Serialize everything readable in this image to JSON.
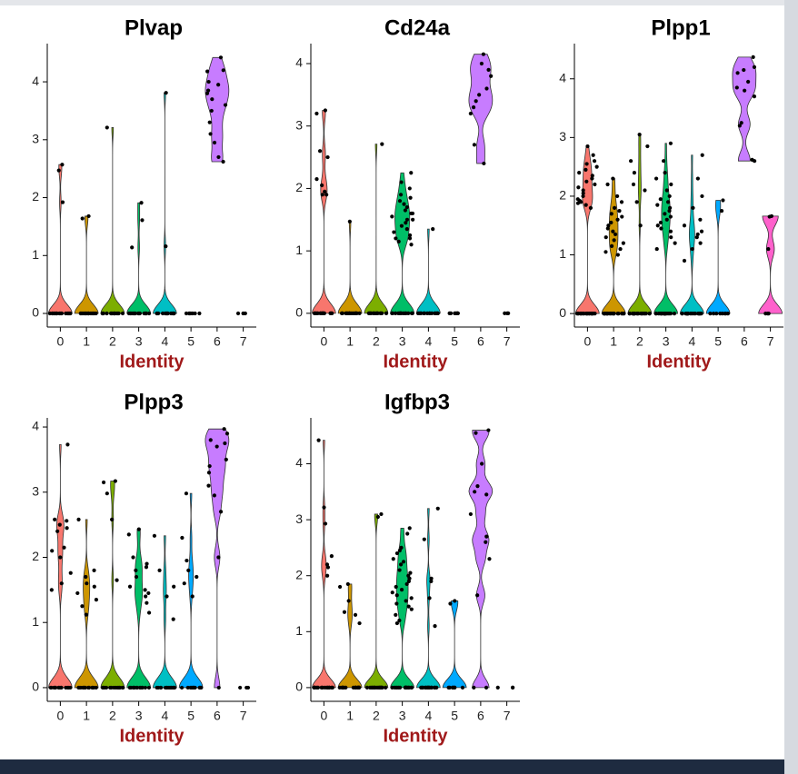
{
  "chart_data": [
    {
      "type": "violin",
      "title": "Plvap",
      "x_label": "Identity",
      "categories": [
        "0",
        "1",
        "2",
        "3",
        "4",
        "5",
        "6",
        "7"
      ],
      "colors": [
        "#F8766D",
        "#CD9600",
        "#7CAE00",
        "#00BE67",
        "#00BFC4",
        "#00A9FF",
        "#C77CFF",
        "#FF61CC"
      ],
      "ylim": [
        -0.235,
        4.66
      ],
      "yticks": [
        0,
        1,
        2,
        3,
        4
      ],
      "values": [
        [
          0,
          0,
          0,
          0,
          0,
          0,
          0,
          0,
          0,
          0,
          0,
          0,
          0,
          0,
          0,
          2.57,
          2.47,
          1.92
        ],
        [
          0,
          0,
          0,
          0,
          0,
          0,
          0,
          0,
          0,
          0,
          0,
          0,
          0,
          0,
          0,
          1.64,
          1.68
        ],
        [
          0,
          0,
          0,
          0,
          0,
          0,
          0,
          0,
          0,
          0,
          0,
          0,
          0,
          0,
          0,
          3.21
        ],
        [
          0,
          0,
          0,
          0,
          0,
          0,
          0,
          0,
          0,
          0,
          0,
          0,
          0,
          0,
          0,
          1.14,
          1.61,
          1.91
        ],
        [
          0,
          0,
          0,
          0,
          0,
          0,
          0,
          0,
          0,
          0,
          0,
          0,
          0,
          0,
          0,
          3.81,
          1.16
        ],
        [
          0,
          0,
          0,
          0,
          0,
          0,
          0
        ],
        [
          4.42,
          4.2,
          4.18,
          4.0,
          3.95,
          3.85,
          3.8,
          3.7,
          3.6,
          3.5,
          3.3,
          3.1,
          2.95,
          2.7,
          2.62
        ],
        [
          0,
          0,
          0
        ]
      ]
    },
    {
      "type": "violin",
      "title": "Cd24a",
      "x_label": "Identity",
      "categories": [
        "0",
        "1",
        "2",
        "3",
        "4",
        "5",
        "6",
        "7"
      ],
      "colors": [
        "#F8766D",
        "#CD9600",
        "#7CAE00",
        "#00BE67",
        "#00BFC4",
        "#00A9FF",
        "#C77CFF",
        "#FF61CC"
      ],
      "ylim": [
        -0.22,
        4.32
      ],
      "yticks": [
        0,
        1,
        2,
        3,
        4
      ],
      "values": [
        [
          0,
          0,
          0,
          0,
          0,
          0,
          0,
          0,
          0,
          0,
          0,
          0,
          0,
          0,
          0,
          3.25,
          3.2,
          2.6,
          2.5,
          2.15,
          2.05,
          1.95,
          1.9,
          1.9
        ],
        [
          0,
          0,
          0,
          0,
          0,
          0,
          0,
          0,
          0,
          0,
          0,
          0,
          0,
          0,
          0,
          1.47
        ],
        [
          0,
          0,
          0,
          0,
          0,
          0,
          0,
          0,
          0,
          0,
          0,
          0,
          0,
          0,
          0,
          2.71
        ],
        [
          0,
          0,
          0,
          0,
          0,
          0,
          0,
          0,
          0,
          0,
          0,
          0,
          0,
          0,
          0,
          2.25,
          2.1,
          2.0,
          1.9,
          1.85,
          1.8,
          1.75,
          1.7,
          1.65,
          1.6,
          1.6,
          1.55,
          1.5,
          1.5,
          1.45,
          1.4,
          1.35,
          1.3,
          1.25,
          1.2,
          1.2,
          1.15,
          1.1
        ],
        [
          0,
          0,
          0,
          0,
          0,
          0,
          0,
          0,
          0,
          0,
          0,
          0,
          0,
          0,
          0,
          1.35
        ],
        [
          0,
          0,
          0,
          0,
          0,
          0,
          0
        ],
        [
          4.15,
          4.0,
          3.9,
          3.8,
          3.6,
          3.5,
          3.4,
          3.3,
          3.2,
          2.7,
          2.4
        ],
        [
          0,
          0,
          0
        ]
      ]
    },
    {
      "type": "violin",
      "title": "Plpp1",
      "x_label": "Identity",
      "categories": [
        "0",
        "1",
        "2",
        "3",
        "4",
        "5",
        "6",
        "7"
      ],
      "colors": [
        "#F8766D",
        "#CD9600",
        "#7CAE00",
        "#00BE67",
        "#00BFC4",
        "#00A9FF",
        "#C77CFF",
        "#FF61CC"
      ],
      "ylim": [
        -0.23,
        4.6
      ],
      "yticks": [
        0,
        1,
        2,
        3,
        4
      ],
      "values": [
        [
          0,
          0,
          0,
          0,
          0,
          0,
          0,
          0,
          0,
          0,
          0,
          0,
          0,
          0,
          0,
          0,
          0,
          0,
          0,
          0,
          2.85,
          2.7,
          2.6,
          2.55,
          2.5,
          2.45,
          2.4,
          2.35,
          2.3,
          2.25,
          2.2,
          2.15,
          2.1,
          2.05,
          2.0,
          1.95,
          1.92,
          1.9,
          1.88,
          1.85,
          1.8
        ],
        [
          0,
          0,
          0,
          0,
          0,
          0,
          0,
          0,
          0,
          0,
          0,
          0,
          0,
          0,
          0,
          0,
          0,
          0,
          0,
          0,
          2.3,
          2.2,
          2.0,
          1.9,
          1.8,
          1.75,
          1.7,
          1.65,
          1.6,
          1.55,
          1.5,
          1.45,
          1.4,
          1.35,
          1.3,
          1.25,
          1.2,
          1.15,
          1.1,
          1.05,
          1.0
        ],
        [
          0,
          0,
          0,
          0,
          0,
          0,
          0,
          0,
          0,
          0,
          0,
          0,
          0,
          0,
          0,
          0,
          0,
          0,
          0,
          0,
          3.05,
          2.85,
          2.6,
          2.4,
          2.2,
          2.1,
          1.9,
          1.5
        ],
        [
          0,
          0,
          0,
          0,
          0,
          0,
          0,
          0,
          0,
          0,
          0,
          0,
          0,
          0,
          0,
          0,
          0,
          0,
          0,
          0,
          2.9,
          2.6,
          2.4,
          2.3,
          2.2,
          2.1,
          2.0,
          1.95,
          1.9,
          1.85,
          1.8,
          1.75,
          1.7,
          1.65,
          1.6,
          1.55,
          1.5,
          1.45,
          1.4,
          1.3,
          1.2,
          1.1
        ],
        [
          0,
          0,
          0,
          0,
          0,
          0,
          0,
          0,
          0,
          0,
          0,
          0,
          0,
          0,
          0,
          0,
          0,
          0,
          0,
          0,
          2.7,
          2.3,
          2.0,
          1.8,
          1.6,
          1.5,
          1.4,
          1.35,
          1.3,
          1.2,
          1.1,
          0.9
        ],
        [
          0,
          0,
          0,
          0,
          0,
          0,
          0,
          0,
          1.93,
          1.75
        ],
        [
          4.37,
          4.2,
          4.15,
          4.1,
          3.95,
          3.85,
          3.8,
          3.7,
          3.25,
          3.2,
          2.62,
          2.6
        ],
        [
          1.66,
          1.65,
          1.1,
          0,
          0,
          0
        ]
      ]
    },
    {
      "type": "violin",
      "title": "Plpp3",
      "x_label": "Identity",
      "categories": [
        "0",
        "1",
        "2",
        "3",
        "4",
        "5",
        "6",
        "7"
      ],
      "colors": [
        "#F8766D",
        "#CD9600",
        "#7CAE00",
        "#00BE67",
        "#00BFC4",
        "#00A9FF",
        "#C77CFF",
        "#FF61CC"
      ],
      "ylim": [
        -0.21,
        4.14
      ],
      "yticks": [
        0,
        1,
        2,
        3,
        4
      ],
      "values": [
        [
          0,
          0,
          0,
          0,
          0,
          0,
          0,
          0,
          0,
          0,
          0,
          0,
          0,
          0,
          0,
          3.73,
          2.58,
          2.56,
          2.5,
          2.45,
          2.4,
          2.15,
          2.1,
          2.0,
          1.76,
          1.6,
          1.5
        ],
        [
          0,
          0,
          0,
          0,
          0,
          0,
          0,
          0,
          0,
          0,
          0,
          0,
          0,
          0,
          0,
          2.58,
          1.8,
          1.7,
          1.6,
          1.55,
          1.45,
          1.35,
          1.25,
          1.12
        ],
        [
          0,
          0,
          0,
          0,
          0,
          0,
          0,
          0,
          0,
          0,
          0,
          0,
          0,
          0,
          0,
          3.17,
          3.15,
          2.98,
          2.58,
          1.65
        ],
        [
          0,
          0,
          0,
          0,
          0,
          0,
          0,
          0,
          0,
          0,
          0,
          0,
          0,
          0,
          0,
          2.43,
          2.35,
          2.0,
          1.9,
          1.85,
          1.8,
          1.7,
          1.55,
          1.5,
          1.45,
          1.4,
          1.3,
          1.15
        ],
        [
          0,
          0,
          0,
          0,
          0,
          0,
          0,
          0,
          0,
          0,
          0,
          0,
          0,
          0,
          0,
          2.33,
          1.8,
          1.55,
          1.4,
          1.05
        ],
        [
          0,
          0,
          0,
          0,
          0,
          0,
          0,
          0,
          0,
          0,
          0,
          0,
          0,
          0,
          0,
          2.98,
          2.3,
          1.95,
          1.8,
          1.7,
          1.6,
          1.4
        ],
        [
          3.97,
          3.9,
          3.8,
          3.75,
          3.7,
          3.5,
          3.4,
          3.3,
          3.1,
          2.95,
          2.7,
          2.0,
          0
        ],
        [
          0,
          0,
          0
        ]
      ]
    },
    {
      "type": "violin",
      "title": "Igfbp3",
      "x_label": "Identity",
      "categories": [
        "0",
        "1",
        "2",
        "3",
        "4",
        "5",
        "6",
        "7"
      ],
      "colors": [
        "#F8766D",
        "#CD9600",
        "#7CAE00",
        "#00BE67",
        "#00BFC4",
        "#00A9FF",
        "#C77CFF",
        "#FF61CC"
      ],
      "ylim": [
        -0.245,
        4.82
      ],
      "yticks": [
        0,
        1,
        2,
        3,
        4
      ],
      "values": [
        [
          0,
          0,
          0,
          0,
          0,
          0,
          0,
          0,
          0,
          0,
          0,
          0,
          0,
          0,
          0,
          4.42,
          3.22,
          2.93,
          2.35,
          2.2,
          2.15,
          2.0
        ],
        [
          0,
          0,
          0,
          0,
          0,
          0,
          0,
          0,
          0,
          0,
          0,
          0,
          0,
          0,
          0,
          1.85,
          1.8,
          1.55,
          1.35,
          1.3,
          1.15
        ],
        [
          0,
          0,
          0,
          0,
          0,
          0,
          0,
          0,
          0,
          0,
          0,
          0,
          0,
          0,
          0,
          3.1,
          3.05
        ],
        [
          0,
          0,
          0,
          0,
          0,
          0,
          0,
          0,
          0,
          0,
          0,
          0,
          0,
          0,
          0,
          2.85,
          2.75,
          2.5,
          2.45,
          2.4,
          2.3,
          2.25,
          2.2,
          2.1,
          2.05,
          2.0,
          1.95,
          1.9,
          1.85,
          1.8,
          1.75,
          1.7,
          1.65,
          1.6,
          1.55,
          1.5,
          1.45,
          1.4,
          1.3,
          1.2,
          1.15
        ],
        [
          0,
          0,
          0,
          0,
          0,
          0,
          0,
          0,
          0,
          0,
          0,
          0,
          0,
          0,
          0,
          3.2,
          2.65,
          1.95,
          1.9,
          1.6,
          1.1
        ],
        [
          0,
          0,
          0,
          0,
          0,
          0,
          0,
          1.55,
          1.5
        ],
        [
          4.6,
          4.55,
          4.0,
          3.6,
          3.5,
          3.45,
          3.1,
          2.7,
          2.6,
          2.3,
          1.65,
          0,
          0
        ],
        [
          0,
          0,
          0
        ]
      ]
    }
  ]
}
